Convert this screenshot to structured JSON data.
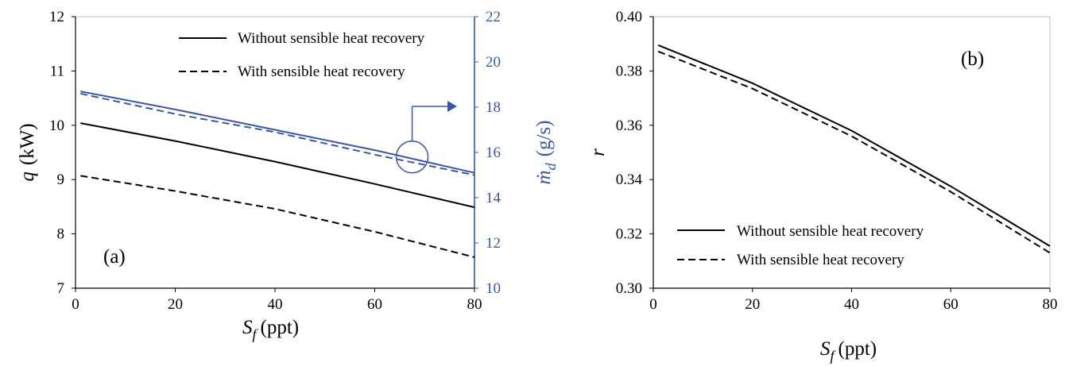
{
  "chart_data": [
    {
      "panel_label": "(a)",
      "type": "line",
      "xlabel": {
        "main": "S",
        "sub": "f",
        "unit": "(ppt)"
      },
      "ylabel_left": {
        "main": "q",
        "unit": "(kW)"
      },
      "ylabel_right": {
        "main": "ṁ",
        "sub": "d",
        "unit": "(g/s)"
      },
      "xlim": [
        0,
        80
      ],
      "ylim_left": [
        7,
        12
      ],
      "ylim_right": [
        10,
        22
      ],
      "xticks": [
        "0",
        "20",
        "40",
        "60",
        "80"
      ],
      "yticks_left": [
        "7",
        "8",
        "9",
        "10",
        "11",
        "12"
      ],
      "yticks_right": [
        "10",
        "12",
        "14",
        "16",
        "18",
        "20",
        "22"
      ],
      "legend": {
        "placement": "top-right",
        "entries": [
          {
            "label": "Without sensible heat recovery",
            "style": "solid"
          },
          {
            "label": "With sensible heat recovery",
            "style": "dashed"
          }
        ]
      },
      "series": [
        {
          "name": "Without sensible heat recovery",
          "axis": "left",
          "style": "solid",
          "color": "#000000",
          "x": [
            1,
            20,
            40,
            60,
            80
          ],
          "y": [
            10.04,
            9.71,
            9.33,
            8.92,
            8.49
          ]
        },
        {
          "name": "With sensible heat recovery",
          "axis": "left",
          "style": "dashed",
          "color": "#000000",
          "x": [
            1,
            20,
            40,
            60,
            80
          ],
          "y": [
            9.07,
            8.79,
            8.46,
            8.04,
            7.57
          ]
        },
        {
          "name": "Without sensible heat recovery",
          "axis": "right",
          "style": "solid",
          "color": "#3a57a6",
          "x": [
            1,
            20,
            40,
            60,
            80
          ],
          "y": [
            18.7,
            17.9,
            17.0,
            16.1,
            15.1
          ]
        },
        {
          "name": "With sensible heat recovery",
          "axis": "right",
          "style": "dashed",
          "color": "#3a57a6",
          "x": [
            1,
            20,
            40,
            60,
            80
          ],
          "y": [
            18.6,
            17.7,
            16.9,
            15.9,
            15.0
          ]
        }
      ],
      "annotation": {
        "type": "circle-with-arrow",
        "target_axis": "right",
        "at_x": 67.5,
        "at_y": 15.8,
        "color": "#3a57a6"
      }
    },
    {
      "panel_label": "(b)",
      "type": "line",
      "xlabel": {
        "main": "S",
        "sub": "f",
        "unit": "(ppt)"
      },
      "ylabel": {
        "main": "r"
      },
      "xlim": [
        0,
        80
      ],
      "ylim": [
        0.3,
        0.4
      ],
      "xticks": [
        "0",
        "20",
        "40",
        "60",
        "80"
      ],
      "yticks": [
        "0.30",
        "0.32",
        "0.34",
        "0.36",
        "0.38",
        "0.40"
      ],
      "legend": {
        "placement": "bottom-left",
        "entries": [
          {
            "label": "Without sensible heat recovery",
            "style": "solid"
          },
          {
            "label": "With sensible heat recovery",
            "style": "dashed"
          }
        ]
      },
      "series": [
        {
          "name": "Without sensible heat recovery",
          "style": "solid",
          "color": "#000000",
          "x": [
            1,
            20,
            40,
            60,
            80
          ],
          "y": [
            0.3895,
            0.3755,
            0.358,
            0.3375,
            0.3155
          ]
        },
        {
          "name": "With sensible heat recovery",
          "style": "dashed",
          "color": "#000000",
          "x": [
            1,
            20,
            40,
            60,
            80
          ],
          "y": [
            0.3872,
            0.3735,
            0.356,
            0.3355,
            0.313
          ]
        }
      ]
    }
  ]
}
